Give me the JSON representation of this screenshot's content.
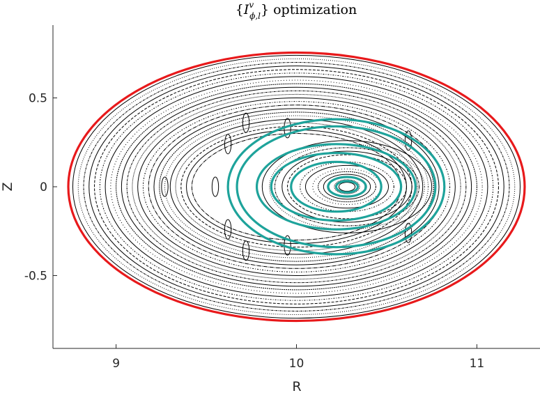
{
  "chart_data": {
    "type": "scatter",
    "title": {
      "open": "{",
      "symbol": "I",
      "superscript": "v",
      "subscript": "ϕ,l",
      "close": "}",
      "rest": "optimization"
    },
    "xlabel": "R",
    "ylabel": "Z",
    "xlim": [
      8.65,
      11.35
    ],
    "ylim": [
      -0.91,
      0.91
    ],
    "xticks": [
      9,
      10,
      11
    ],
    "xtick_labels": [
      "9",
      "10",
      "11"
    ],
    "yticks": [
      0.5,
      0,
      -0.5
    ],
    "ytick_labels": [
      "0.5",
      "0",
      "-0.5"
    ],
    "grid": false,
    "series": [
      {
        "role": "boundary",
        "color": "#e8191b",
        "center": [
          10.0,
          0.0
        ],
        "half_widths": [
          [
            1.265,
            0.755
          ]
        ]
      },
      {
        "role": "poincare-surfaces",
        "color": "#000000",
        "center": [
          10.0,
          0.0
        ],
        "half_widths": [
          [
            1.24,
            0.74
          ],
          [
            1.21,
            0.72
          ],
          [
            1.18,
            0.7
          ],
          [
            1.15,
            0.68
          ],
          [
            1.12,
            0.66
          ],
          [
            1.09,
            0.64
          ],
          [
            1.06,
            0.62
          ],
          [
            1.03,
            0.6
          ],
          [
            1.0,
            0.58
          ],
          [
            0.97,
            0.56
          ],
          [
            0.94,
            0.54
          ],
          [
            0.91,
            0.52
          ],
          [
            0.88,
            0.5
          ],
          [
            0.85,
            0.48
          ],
          [
            0.82,
            0.46
          ],
          [
            0.79,
            0.44
          ],
          [
            0.76,
            0.42
          ],
          [
            0.73,
            0.4
          ],
          [
            0.7,
            0.38
          ],
          [
            0.67,
            0.36
          ],
          [
            0.64,
            0.34
          ],
          [
            0.61,
            0.32
          ],
          [
            0.58,
            0.3
          ]
        ]
      },
      {
        "role": "inner-poincare-surfaces",
        "color": "#000000",
        "center": [
          10.28,
          0.0
        ],
        "half_widths": [
          [
            0.47,
            0.26
          ],
          [
            0.43,
            0.24
          ],
          [
            0.4,
            0.22
          ],
          [
            0.36,
            0.2
          ],
          [
            0.33,
            0.18
          ],
          [
            0.26,
            0.14
          ],
          [
            0.23,
            0.12
          ],
          [
            0.19,
            0.1
          ],
          [
            0.16,
            0.085
          ],
          [
            0.13,
            0.07
          ],
          [
            0.1,
            0.055
          ],
          [
            0.07,
            0.04
          ],
          [
            0.045,
            0.025
          ]
        ]
      },
      {
        "role": "island-chain",
        "color": "#000000",
        "points": [
          [
            9.55,
            0.0
          ],
          [
            9.27,
            0.0
          ],
          [
            9.62,
            0.24
          ],
          [
            9.62,
            -0.24
          ],
          [
            9.95,
            0.33
          ],
          [
            9.95,
            -0.33
          ],
          [
            10.62,
            0.26
          ],
          [
            10.62,
            -0.26
          ],
          [
            9.72,
            0.36
          ],
          [
            9.72,
            -0.36
          ]
        ],
        "half_widths": [
          0.018,
          0.055
        ]
      },
      {
        "role": "optimized-surfaces",
        "color": "#1ea39b",
        "center": [
          10.22,
          0.0
        ],
        "half_widths": [
          [
            0.6,
            0.38
          ],
          [
            0.55,
            0.34
          ],
          [
            0.44,
            0.24
          ],
          [
            0.36,
            0.19
          ],
          [
            0.25,
            0.14
          ]
        ]
      },
      {
        "role": "optimized-core",
        "color": "#1ea39b",
        "center": [
          10.28,
          0.0
        ],
        "half_widths": [
          [
            0.105,
            0.055
          ],
          [
            0.06,
            0.032
          ]
        ]
      }
    ]
  }
}
